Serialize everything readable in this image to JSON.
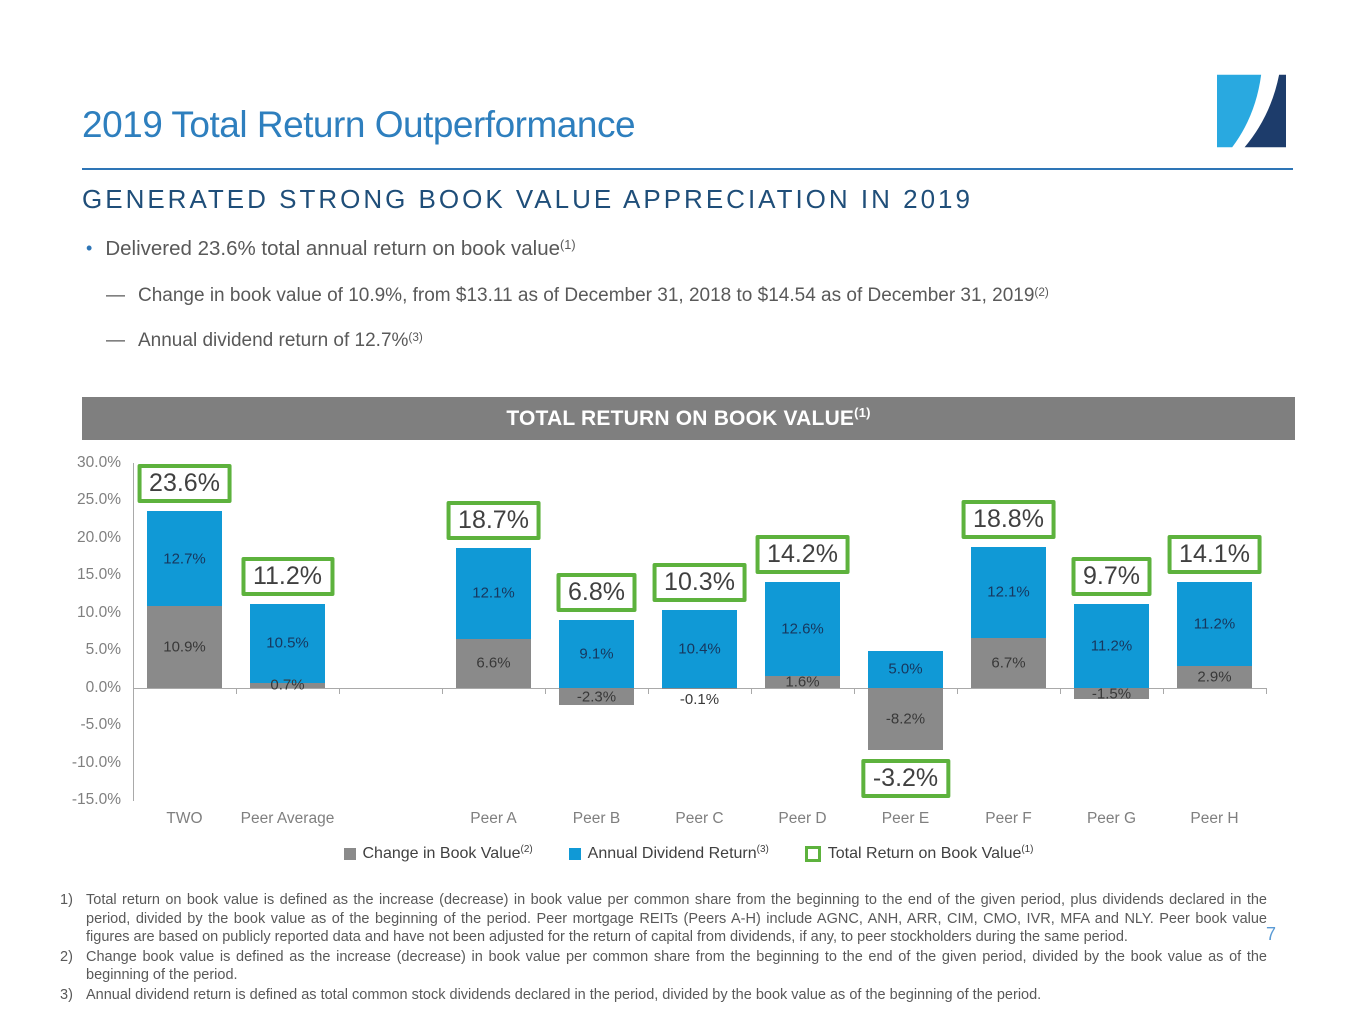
{
  "header": {
    "title": "2019 Total Return Outperformance",
    "subtitle": "GENERATED STRONG BOOK VALUE APPRECIATION IN 2019"
  },
  "bullets": {
    "marker": "•",
    "dash": "—",
    "main": {
      "text": "Delivered 23.6% total annual return on book value",
      "sup": "(1)"
    },
    "subs": [
      {
        "text": "Change in book value of 10.9%, from $13.11 as of December 31, 2018 to $14.54 as of December 31, 2019",
        "sup": "(2)"
      },
      {
        "text": "Annual dividend return of 12.7%",
        "sup": "(3)"
      }
    ]
  },
  "chart": {
    "title": "TOTAL RETURN ON BOOK VALUE",
    "title_sup": "(1)"
  },
  "chart_data": {
    "type": "bar",
    "stacked": true,
    "title": "TOTAL RETURN ON BOOK VALUE(1)",
    "grid": false,
    "legend_position": "bottom",
    "ylim": [
      -15,
      30
    ],
    "y_ticks": [
      {
        "v": 30,
        "label": "30.0%"
      },
      {
        "v": 25,
        "label": "25.0%"
      },
      {
        "v": 20,
        "label": "20.0%"
      },
      {
        "v": 15,
        "label": "15.0%"
      },
      {
        "v": 10,
        "label": "10.0%"
      },
      {
        "v": 5,
        "label": "5.0%"
      },
      {
        "v": 0,
        "label": "0.0%"
      },
      {
        "v": -5,
        "label": "-5.0%"
      },
      {
        "v": -10,
        "label": "-10.0%"
      },
      {
        "v": -15,
        "label": "-15.0%"
      }
    ],
    "categories": [
      "TWO",
      "Peer Average",
      "",
      "Peer A",
      "Peer B",
      "Peer C",
      "Peer D",
      "Peer E",
      "Peer F",
      "Peer G",
      "Peer H"
    ],
    "series": [
      {
        "name": "Change in Book Value",
        "color": "#8A8A8A",
        "values": [
          10.9,
          0.7,
          null,
          6.6,
          -2.3,
          -0.1,
          1.6,
          -8.2,
          6.7,
          -1.5,
          2.9
        ]
      },
      {
        "name": "Annual Dividend Return",
        "color": "#1099D6",
        "values": [
          12.7,
          10.5,
          null,
          12.1,
          9.1,
          10.4,
          12.6,
          5.0,
          12.1,
          11.2,
          11.2
        ]
      }
    ],
    "totals": [
      23.6,
      11.2,
      null,
      18.7,
      6.8,
      10.3,
      14.2,
      -3.2,
      18.8,
      9.7,
      14.1
    ],
    "total_box_color": "#5DB23D"
  },
  "legend": {
    "items": [
      {
        "label": "Change in Book Value",
        "sup": "(2)",
        "swatch": "gray-filled-square"
      },
      {
        "label": "Annual Dividend Return",
        "sup": "(3)",
        "swatch": "blue-filled-square"
      },
      {
        "label": "Total Return on Book Value",
        "sup": "(1)",
        "swatch": "green-outline-square"
      }
    ]
  },
  "notes": {
    "items": [
      {
        "num": "1)",
        "text": "Total return on book value is defined as the increase (decrease) in book value per common share from the beginning to the end of the given period, plus dividends declared in the period, divided by the book value as of the beginning of the period. Peer mortgage REITs (Peers A-H) include AGNC, ANH, ARR, CIM, CMO, IVR, MFA and NLY. Peer book value figures are based on publicly reported data and have not been adjusted for the return of capital from dividends, if any, to peer stockholders during the same period."
      },
      {
        "num": "2)",
        "text": "Change book value is defined as the increase (decrease) in book value per common share from the beginning to the end of the given period, divided by the book value as of the beginning of the period."
      },
      {
        "num": "3)",
        "text": "Annual dividend return is defined as total common stock dividends declared in the period, divided by the book value as of the beginning of the period."
      }
    ]
  },
  "page_number": "7",
  "colors": {
    "title_blue": "#2E7FBE",
    "divider_blue": "#2E75B6",
    "subtitle_navy": "#1F4E79",
    "body_gray": "#595959",
    "chart_header_gray": "#7F7F7F",
    "bar_blue": "#1099D6",
    "bar_gray": "#8A8A8A",
    "total_box_green": "#5DB23D",
    "axis_gray": "#A9A9A9",
    "page_number_blue": "#5B9BD5",
    "logo_light_blue": "#29A9E0",
    "logo_navy": "#1D3C6B"
  }
}
